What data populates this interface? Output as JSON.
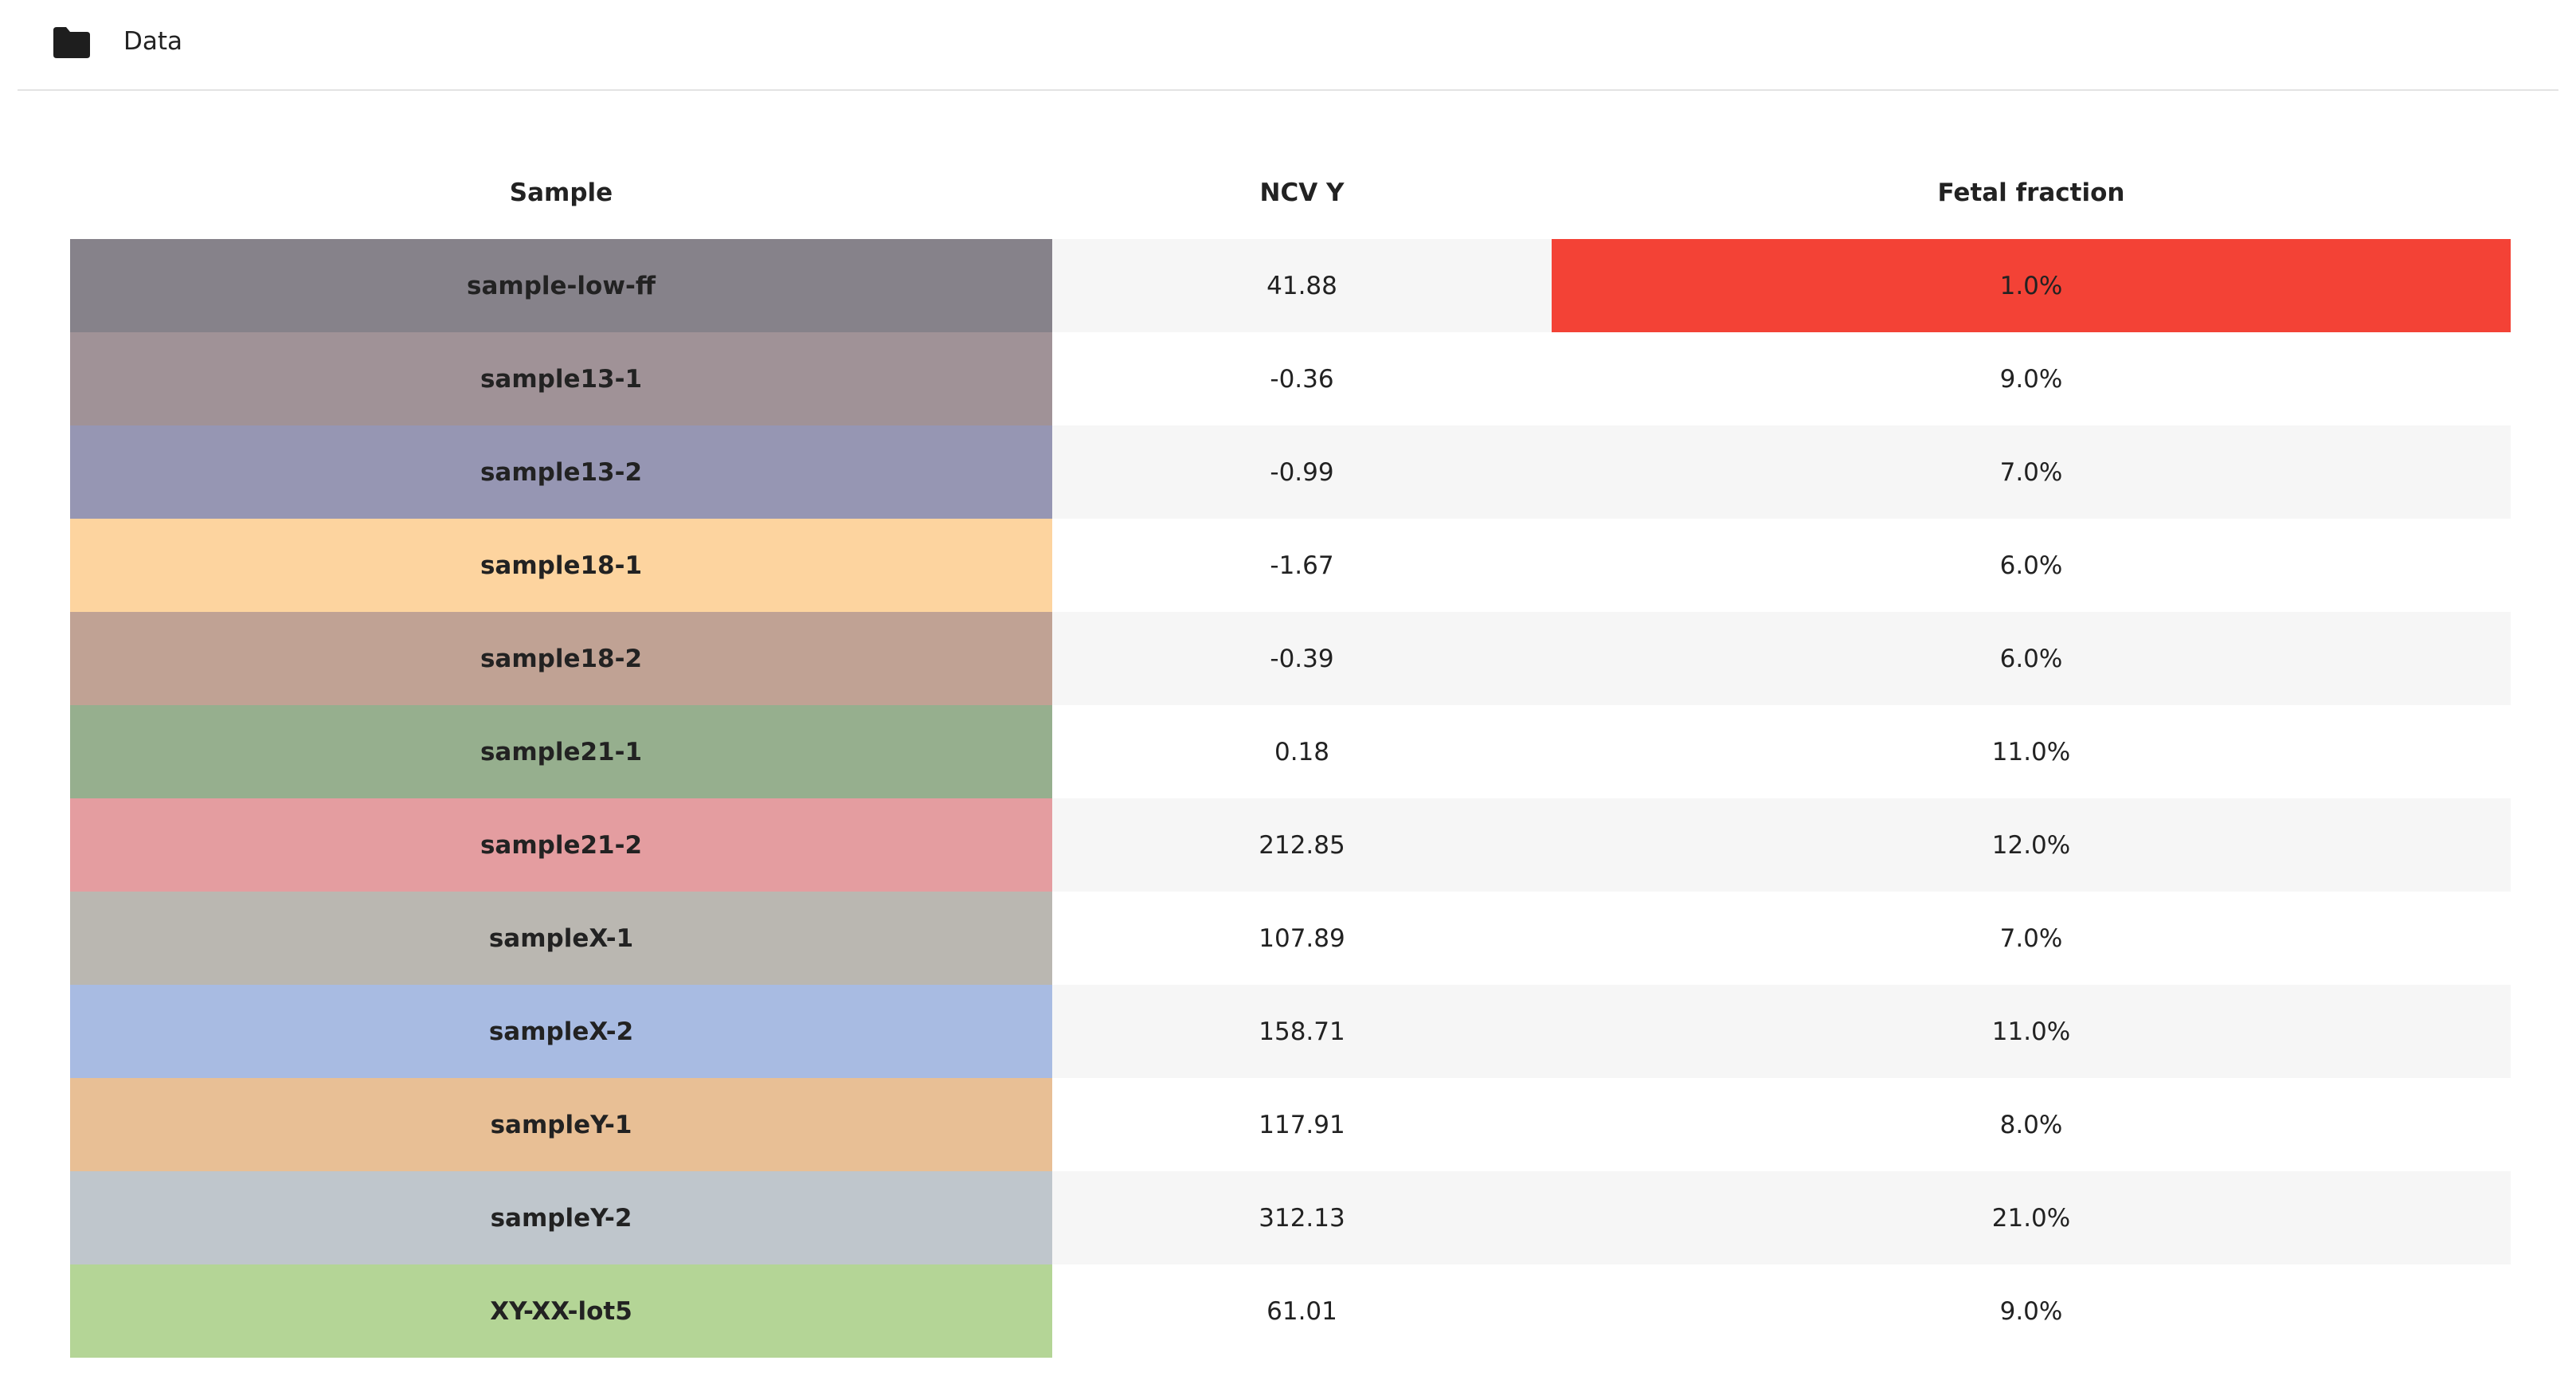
{
  "header": {
    "title": "Data",
    "icon": "folder-icon"
  },
  "table": {
    "columns": [
      "Sample",
      "NCV Y",
      "Fetal fraction"
    ],
    "rows": [
      {
        "sample": "sample-low-ff",
        "ncv_y": "41.88",
        "fetal_fraction": "1.0%",
        "sample_color": "#86828a",
        "ff_color": "#f34236"
      },
      {
        "sample": "sample13-1",
        "ncv_y": "-0.36",
        "fetal_fraction": "9.0%",
        "sample_color": "#a09297",
        "ff_color": ""
      },
      {
        "sample": "sample13-2",
        "ncv_y": "-0.99",
        "fetal_fraction": "7.0%",
        "sample_color": "#9696b3",
        "ff_color": ""
      },
      {
        "sample": "sample18-1",
        "ncv_y": "-1.67",
        "fetal_fraction": "6.0%",
        "sample_color": "#fdd49f",
        "ff_color": ""
      },
      {
        "sample": "sample18-2",
        "ncv_y": "-0.39",
        "fetal_fraction": "6.0%",
        "sample_color": "#c0a294",
        "ff_color": ""
      },
      {
        "sample": "sample21-1",
        "ncv_y": "0.18",
        "fetal_fraction": "11.0%",
        "sample_color": "#96af8e",
        "ff_color": ""
      },
      {
        "sample": "sample21-2",
        "ncv_y": "212.85",
        "fetal_fraction": "12.0%",
        "sample_color": "#e49da0",
        "ff_color": ""
      },
      {
        "sample": "sampleX-1",
        "ncv_y": "107.89",
        "fetal_fraction": "7.0%",
        "sample_color": "#bab7b1",
        "ff_color": ""
      },
      {
        "sample": "sampleX-2",
        "ncv_y": "158.71",
        "fetal_fraction": "11.0%",
        "sample_color": "#a8bbe2",
        "ff_color": ""
      },
      {
        "sample": "sampleY-1",
        "ncv_y": "117.91",
        "fetal_fraction": "8.0%",
        "sample_color": "#e8bf95",
        "ff_color": ""
      },
      {
        "sample": "sampleY-2",
        "ncv_y": "312.13",
        "fetal_fraction": "21.0%",
        "sample_color": "#bfc6cc",
        "ff_color": ""
      },
      {
        "sample": "XY-XX-lot5",
        "ncv_y": "61.01",
        "fetal_fraction": "9.0%",
        "sample_color": "#b4d596",
        "ff_color": ""
      }
    ]
  },
  "colors": {
    "stripe": "#f6f6f6",
    "header_border": "#e3e3e3",
    "text": "#222222"
  }
}
